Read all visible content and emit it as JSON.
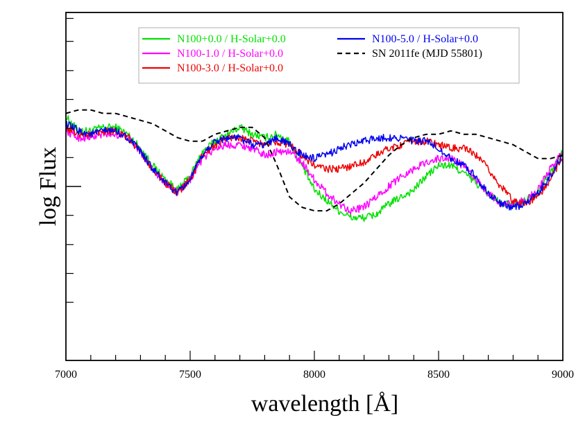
{
  "chart_data": {
    "type": "line",
    "title": "",
    "xlabel": "wavelength [Å]",
    "ylabel": "log Flux",
    "xlim": [
      7000,
      9000
    ],
    "ylim": [
      0,
      1
    ],
    "x_ticks": [
      7000,
      7500,
      8000,
      8500,
      9000
    ],
    "x_minor_step": 100,
    "y_ticks": [
      0.5
    ],
    "y_minor_ticks": [
      0.167,
      0.25,
      0.333,
      0.417,
      0.583,
      0.667,
      0.75,
      0.833,
      0.917,
      0.983
    ],
    "grid": false,
    "legend": "top-center",
    "series": [
      {
        "name": "N100+0.0 / H-Solar+0.0",
        "color": "#00e000",
        "dashed": false,
        "noise": 0.011,
        "x": [
          7000,
          7050,
          7100,
          7150,
          7200,
          7250,
          7300,
          7350,
          7400,
          7450,
          7500,
          7550,
          7600,
          7650,
          7700,
          7750,
          7800,
          7850,
          7900,
          7950,
          8000,
          8050,
          8100,
          8150,
          8200,
          8250,
          8300,
          8350,
          8400,
          8450,
          8500,
          8550,
          8600,
          8650,
          8700,
          8750,
          8800,
          8850,
          8900,
          8950,
          9000
        ],
        "y": [
          0.7,
          0.66,
          0.66,
          0.67,
          0.67,
          0.65,
          0.61,
          0.56,
          0.52,
          0.49,
          0.53,
          0.6,
          0.63,
          0.65,
          0.67,
          0.65,
          0.64,
          0.65,
          0.63,
          0.56,
          0.49,
          0.46,
          0.43,
          0.41,
          0.41,
          0.42,
          0.45,
          0.47,
          0.49,
          0.53,
          0.56,
          0.56,
          0.54,
          0.51,
          0.48,
          0.45,
          0.45,
          0.46,
          0.49,
          0.54,
          0.6
        ]
      },
      {
        "name": "N100-1.0 / H-Solar+0.0",
        "color": "#ff00ff",
        "dashed": false,
        "noise": 0.011,
        "x": [
          7000,
          7050,
          7100,
          7150,
          7200,
          7250,
          7300,
          7350,
          7400,
          7450,
          7500,
          7550,
          7600,
          7650,
          7700,
          7750,
          7800,
          7850,
          7900,
          7950,
          8000,
          8050,
          8100,
          8150,
          8200,
          8250,
          8300,
          8350,
          8400,
          8450,
          8500,
          8550,
          8600,
          8650,
          8700,
          8750,
          8800,
          8850,
          8900,
          8950,
          9000
        ],
        "y": [
          0.66,
          0.64,
          0.64,
          0.65,
          0.65,
          0.64,
          0.6,
          0.55,
          0.51,
          0.48,
          0.52,
          0.58,
          0.61,
          0.62,
          0.62,
          0.61,
          0.59,
          0.6,
          0.6,
          0.57,
          0.52,
          0.48,
          0.45,
          0.43,
          0.44,
          0.47,
          0.5,
          0.53,
          0.55,
          0.57,
          0.58,
          0.58,
          0.56,
          0.52,
          0.48,
          0.45,
          0.45,
          0.46,
          0.49,
          0.55,
          0.6
        ]
      },
      {
        "name": "N100-3.0 / H-Solar+0.0",
        "color": "#ee0000",
        "dashed": false,
        "noise": 0.011,
        "x": [
          7000,
          7050,
          7100,
          7150,
          7200,
          7250,
          7300,
          7350,
          7400,
          7450,
          7500,
          7550,
          7600,
          7650,
          7700,
          7750,
          7800,
          7850,
          7900,
          7950,
          8000,
          8050,
          8100,
          8150,
          8200,
          8250,
          8300,
          8350,
          8400,
          8450,
          8500,
          8550,
          8600,
          8650,
          8700,
          8750,
          8800,
          8850,
          8900,
          8950,
          9000
        ],
        "y": [
          0.67,
          0.65,
          0.65,
          0.66,
          0.66,
          0.64,
          0.6,
          0.55,
          0.51,
          0.48,
          0.52,
          0.59,
          0.62,
          0.64,
          0.64,
          0.63,
          0.62,
          0.63,
          0.62,
          0.59,
          0.56,
          0.55,
          0.55,
          0.56,
          0.57,
          0.59,
          0.61,
          0.62,
          0.63,
          0.63,
          0.62,
          0.61,
          0.61,
          0.59,
          0.55,
          0.5,
          0.46,
          0.45,
          0.47,
          0.52,
          0.59
        ]
      },
      {
        "name": "N100-5.0 / H-Solar+0.0",
        "color": "#0000ee",
        "dashed": false,
        "noise": 0.011,
        "x": [
          7000,
          7050,
          7100,
          7150,
          7200,
          7250,
          7300,
          7350,
          7400,
          7450,
          7500,
          7550,
          7600,
          7650,
          7700,
          7750,
          7800,
          7850,
          7900,
          7950,
          8000,
          8050,
          8100,
          8150,
          8200,
          8250,
          8300,
          8350,
          8400,
          8450,
          8500,
          8550,
          8600,
          8650,
          8700,
          8750,
          8800,
          8850,
          8900,
          8950,
          9000
        ],
        "y": [
          0.68,
          0.66,
          0.65,
          0.66,
          0.66,
          0.64,
          0.6,
          0.55,
          0.51,
          0.48,
          0.52,
          0.59,
          0.63,
          0.64,
          0.64,
          0.62,
          0.62,
          0.64,
          0.62,
          0.59,
          0.58,
          0.59,
          0.61,
          0.62,
          0.63,
          0.64,
          0.64,
          0.64,
          0.63,
          0.63,
          0.61,
          0.58,
          0.56,
          0.53,
          0.48,
          0.45,
          0.44,
          0.45,
          0.48,
          0.53,
          0.59
        ]
      },
      {
        "name": "SN 2011fe (MJD 55801)",
        "color": "#000000",
        "dashed": true,
        "noise": 0,
        "x": [
          7000,
          7050,
          7100,
          7150,
          7200,
          7250,
          7300,
          7350,
          7400,
          7450,
          7500,
          7550,
          7600,
          7650,
          7700,
          7750,
          7800,
          7850,
          7900,
          7950,
          8000,
          8050,
          8100,
          8150,
          8200,
          8250,
          8300,
          8350,
          8400,
          8450,
          8500,
          8550,
          8600,
          8650,
          8700,
          8750,
          8800,
          8850,
          8900,
          8950,
          9000
        ],
        "y": [
          0.71,
          0.72,
          0.72,
          0.71,
          0.71,
          0.7,
          0.69,
          0.68,
          0.66,
          0.64,
          0.63,
          0.63,
          0.65,
          0.66,
          0.67,
          0.67,
          0.64,
          0.56,
          0.47,
          0.44,
          0.43,
          0.43,
          0.45,
          0.48,
          0.51,
          0.55,
          0.59,
          0.62,
          0.64,
          0.65,
          0.65,
          0.66,
          0.65,
          0.65,
          0.64,
          0.63,
          0.62,
          0.6,
          0.58,
          0.58,
          0.59
        ]
      }
    ]
  }
}
